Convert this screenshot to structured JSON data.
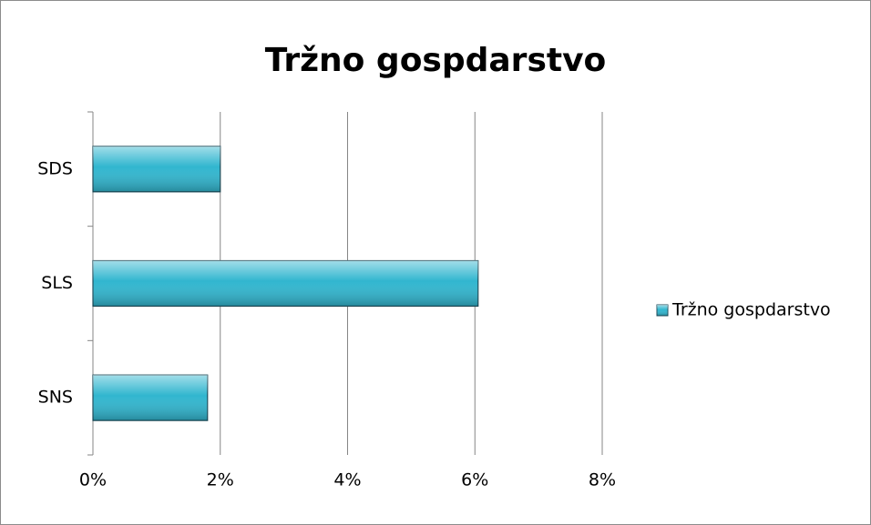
{
  "chart_data": {
    "type": "bar",
    "orientation": "horizontal",
    "title": "Tržno gospdarstvo",
    "categories": [
      "SDS",
      "SLS",
      "SNS"
    ],
    "series": [
      {
        "name": "Tržno gospdarstvo",
        "color": "#31b6cf",
        "values": [
          2,
          6.05,
          1.8
        ]
      }
    ],
    "xlim": [
      0,
      8
    ],
    "xticks": [
      {
        "value": 0,
        "label": "0%"
      },
      {
        "value": 2,
        "label": "2%"
      },
      {
        "value": 4,
        "label": "4%"
      },
      {
        "value": 6,
        "label": "6%"
      },
      {
        "value": 8,
        "label": "8%"
      }
    ],
    "grid": true,
    "legend": "right"
  }
}
